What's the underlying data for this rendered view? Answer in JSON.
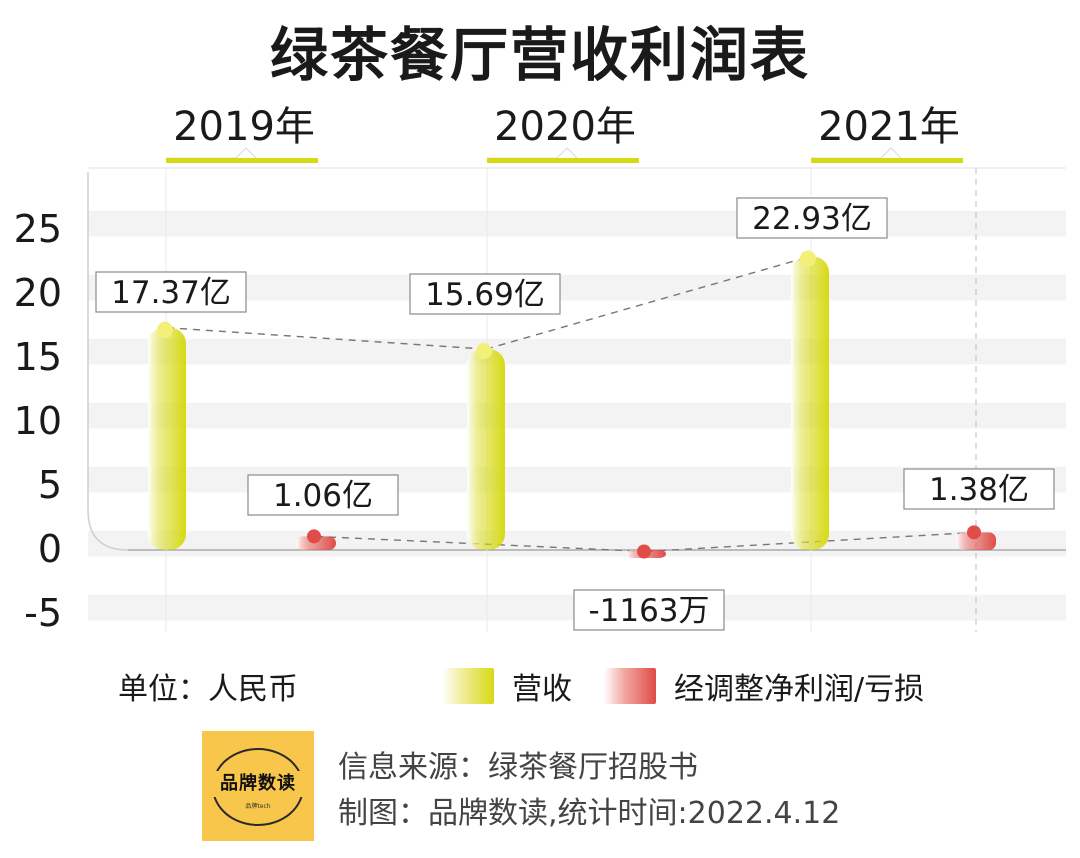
{
  "title": "绿茶餐厅营收利润表",
  "legend": {
    "unit": "单位：人民币",
    "revenue_label": "营收",
    "profit_label": "经调整净利润/亏损"
  },
  "footer": {
    "logo_text": "品牌数读",
    "logo_subtext": "品牌tech",
    "source": "信息来源：绿茶餐厅招股书",
    "made_by": "制图：品牌数读,统计时间:2022.4.12"
  },
  "colors": {
    "revenue": "#d7d913",
    "profit": "#e04c48",
    "band": "#f2f3f2",
    "dash": "#777777"
  },
  "chart_data": {
    "type": "bar",
    "title": "绿茶餐厅营收利润表",
    "categories": [
      "2019年",
      "2020年",
      "2021年"
    ],
    "series": [
      {
        "name": "营收",
        "values": [
          17.37,
          15.69,
          22.93
        ],
        "labels": [
          "17.37亿",
          "15.69亿",
          "22.93亿"
        ]
      },
      {
        "name": "经调整净利润/亏损",
        "values": [
          1.06,
          -0.1163,
          1.38
        ],
        "labels": [
          "1.06亿",
          "-1163万",
          "1.38亿"
        ]
      }
    ],
    "yticks": [
      25,
      20,
      15,
      10,
      5,
      0,
      -5
    ],
    "ylim": [
      -6.5,
      30
    ],
    "grid": true,
    "legend_position": "bottom"
  }
}
